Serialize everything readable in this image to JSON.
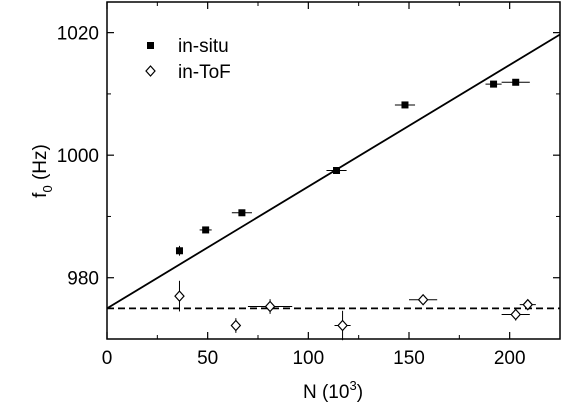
{
  "chart_data": {
    "type": "scatter",
    "xlabel": {
      "main": "N (10",
      "sup": "3",
      "tail": ")"
    },
    "ylabel": {
      "main": "f",
      "sub": "0",
      "tail": " (Hz)"
    },
    "xlim": [
      0,
      225
    ],
    "ylim": [
      970,
      1025
    ],
    "xticks": [
      0,
      50,
      100,
      150,
      200
    ],
    "yticks": [
      980,
      1000,
      1020
    ],
    "x_tick_labels": [
      "0",
      "50",
      "100",
      "150",
      "200"
    ],
    "y_tick_labels": [
      "980",
      "1000",
      "1020"
    ],
    "legend_position": "top-left",
    "series": [
      {
        "name": "in-situ",
        "marker": "filled-square",
        "points": [
          {
            "x": 36,
            "y": 984.4,
            "xerr": 1,
            "yerr": 0.8
          },
          {
            "x": 49,
            "y": 987.8,
            "xerr": 3,
            "yerr": 0.5
          },
          {
            "x": 67,
            "y": 990.6,
            "xerr": 5,
            "yerr": 0.3
          },
          {
            "x": 114,
            "y": 997.5,
            "xerr": 5,
            "yerr": 0.3
          },
          {
            "x": 148,
            "y": 1008.2,
            "xerr": 5,
            "yerr": 0.3
          },
          {
            "x": 192,
            "y": 1011.6,
            "xerr": 4,
            "yerr": 0.3
          },
          {
            "x": 203,
            "y": 1011.9,
            "xerr": 7,
            "yerr": 0.3
          }
        ]
      },
      {
        "name": "in-ToF",
        "marker": "open-diamond",
        "points": [
          {
            "x": 36,
            "y": 977.0,
            "xerr": 1,
            "yerr": 2.5
          },
          {
            "x": 64,
            "y": 972.2,
            "xerr": 1,
            "yerr": 1.2
          },
          {
            "x": 81,
            "y": 975.3,
            "xerr": 11,
            "yerr": 1.2
          },
          {
            "x": 117,
            "y": 972.2,
            "xerr": 4,
            "yerr": 2.4
          },
          {
            "x": 157,
            "y": 976.4,
            "xerr": 7,
            "yerr": 0.3
          },
          {
            "x": 203,
            "y": 974.0,
            "xerr": 7,
            "yerr": 1.0
          },
          {
            "x": 209,
            "y": 975.6,
            "xerr": 4,
            "yerr": 0.8
          }
        ]
      }
    ],
    "fits": [
      {
        "name": "in-situ fit",
        "style": "solid",
        "x": [
          0,
          225
        ],
        "y": [
          975.0,
          1019.7
        ]
      },
      {
        "name": "in-ToF fit",
        "style": "dashed",
        "x": [
          0,
          225
        ],
        "y": [
          975.0,
          975.0
        ]
      }
    ]
  }
}
